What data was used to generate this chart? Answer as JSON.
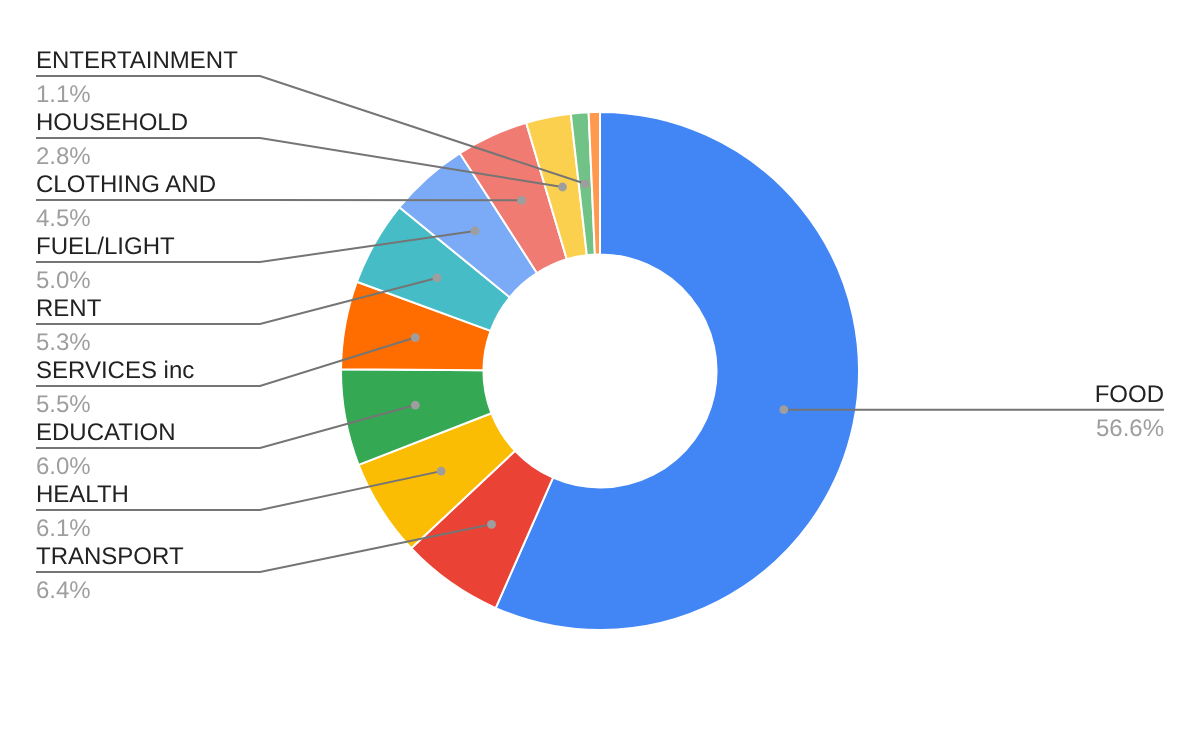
{
  "chart_data": {
    "type": "donut",
    "categories": [
      "FOOD",
      "TRANSPORT",
      "HEALTH",
      "EDUCATION",
      "SERVICES inc",
      "RENT",
      "FUEL/LIGHT",
      "CLOTHING AND",
      "HOUSEHOLD",
      "ENTERTAINMENT",
      null
    ],
    "values": [
      56.6,
      6.4,
      6.1,
      6.0,
      5.5,
      5.3,
      5.0,
      4.5,
      2.8,
      1.1,
      0.7
    ],
    "value_labels": [
      "56.6%",
      "6.4%",
      "6.1%",
      "6.0%",
      "5.5%",
      "5.3%",
      "5.0%",
      "4.5%",
      "2.8%",
      "1.1%",
      null
    ],
    "colors": [
      "#4285f4",
      "#ea4335",
      "#fbbc04",
      "#34a853",
      "#ff6d01",
      "#46bdc6",
      "#7baaf7",
      "#f07b72",
      "#fcd04f",
      "#71c287",
      "#ff994d"
    ],
    "legend": false
  }
}
